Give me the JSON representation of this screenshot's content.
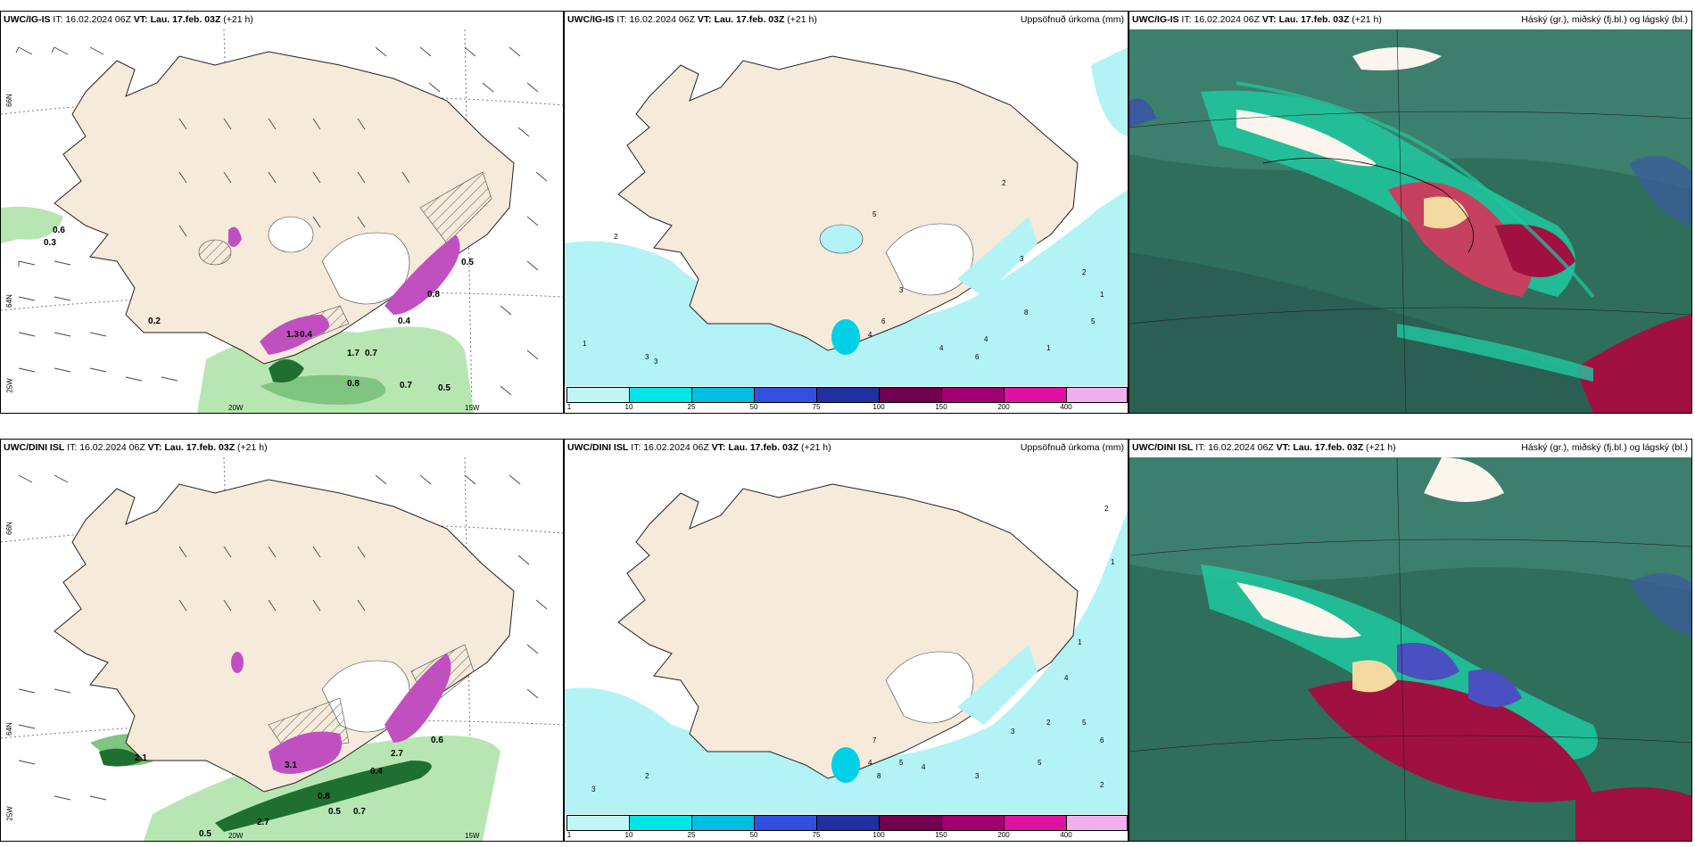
{
  "rows": [
    {
      "model": "UWC/IG-IS",
      "it_label": "IT:",
      "it_value": "16.02.2024 06Z",
      "vt_label": "VT:",
      "vt_value": "Lau. 17.feb. 03Z",
      "lead": "(+21 h)",
      "precip_title": "Uppsöfnuð úrkoma (mm)",
      "cloud_title": "Háský (gr.), miðský (fj.bl.) og lágský (bl.)",
      "wind_labels": [
        "0.6",
        "0.3",
        "0.2",
        "0.4",
        "1.3",
        "1.7",
        "0.7",
        "0.8",
        "0.7",
        "0.5",
        "0.4",
        "0.8",
        "0.5"
      ],
      "precip_labels": [
        "2",
        "1",
        "3",
        "4",
        "5",
        "6",
        "3",
        "2",
        "8",
        "1",
        "4",
        "3",
        "2",
        "5",
        "1",
        "3",
        "4",
        "6"
      ]
    },
    {
      "model": "UWC/DINI ISL",
      "it_label": "IT:",
      "it_value": "16.02.2024 06Z",
      "vt_label": "VT:",
      "vt_value": "Lau. 17.feb. 03Z",
      "lead": "(+21 h)",
      "precip_title": "Uppsöfnuð úrkoma (mm)",
      "cloud_title": "Háský (gr.), miðský (fj.bl.) og lágský (bl.)",
      "wind_labels": [
        "2.1",
        "3.1",
        "0.8",
        "0.5",
        "0.7",
        "2.7",
        "0.6",
        "0.5",
        "2.7",
        "0.4"
      ],
      "precip_labels": [
        "2",
        "1",
        "3",
        "4",
        "2",
        "7",
        "8",
        "5",
        "4",
        "3",
        "2",
        "4",
        "5",
        "6",
        "1",
        "3",
        "5",
        "2"
      ]
    }
  ],
  "axis": {
    "lat_top": "66N",
    "lat_mid": "64N",
    "lon_left": "25W",
    "lon_mid": "20W",
    "lon_right": "15W"
  },
  "colorbar": {
    "ticks": [
      "1",
      "10",
      "25",
      "50",
      "75",
      "100",
      "150",
      "200",
      "400"
    ],
    "colors": [
      "#bff7f7",
      "#00e5e5",
      "#00bfe0",
      "#3050e0",
      "#2030a0",
      "#700050",
      "#a00070",
      "#e010a0",
      "#f0b0f0"
    ]
  },
  "colors": {
    "land": "#f6eadb",
    "snow_white": "#ffffff",
    "precip_light": "#b3f3f5",
    "green_precip": "#6fbf70",
    "dark_green": "#1f6f30",
    "purple": "#c040c0",
    "cloud_base": "#2e6e5a",
    "cloud_teal": "#1ec9a0",
    "cloud_red": "#a01040"
  }
}
